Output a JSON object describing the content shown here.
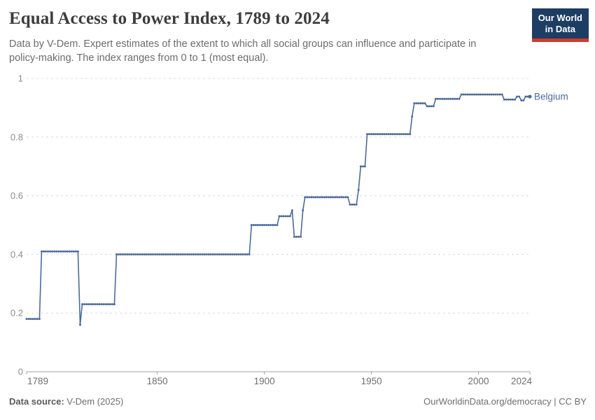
{
  "header": {
    "title": "Equal Access to Power Index, 1789 to 2024",
    "subtitle_line1": "Data by V-Dem. Expert estimates of the extent to which all social groups can influence and participate in",
    "subtitle_line2": "policy-making. The index ranges from 0 to 1 (most equal)."
  },
  "logo": {
    "line1": "Our World",
    "line2": "in Data",
    "bg_color": "#1d3d63",
    "accent_color": "#cf3a30"
  },
  "chart_data": {
    "type": "line",
    "title": "Equal Access to Power Index, 1789 to 2024",
    "entity": "Belgium",
    "xlim": [
      1789,
      2024
    ],
    "ylim": [
      0,
      1
    ],
    "x_ticks": [
      1789,
      1850,
      1900,
      1950,
      2000,
      2024
    ],
    "y_ticks": [
      0,
      0.2,
      0.4,
      0.6,
      0.8,
      1
    ],
    "grid": "horizontal-dashed",
    "legend_position": "end-of-line-label",
    "series": [
      {
        "name": "Belgium",
        "color": "#4C6A9C",
        "step_segments": [
          {
            "from": 1789,
            "to": 1795,
            "value": 0.18
          },
          {
            "from": 1796,
            "to": 1813,
            "value": 0.41
          },
          {
            "from": 1814,
            "to": 1814,
            "value": 0.16
          },
          {
            "from": 1815,
            "to": 1830,
            "value": 0.23
          },
          {
            "from": 1831,
            "to": 1893,
            "value": 0.4
          },
          {
            "from": 1894,
            "to": 1906,
            "value": 0.5
          },
          {
            "from": 1907,
            "to": 1912,
            "value": 0.53
          },
          {
            "from": 1913,
            "to": 1913,
            "value": 0.55
          },
          {
            "from": 1914,
            "to": 1917,
            "value": 0.46
          },
          {
            "from": 1918,
            "to": 1918,
            "value": 0.55
          },
          {
            "from": 1919,
            "to": 1939,
            "value": 0.595
          },
          {
            "from": 1940,
            "to": 1943,
            "value": 0.57
          },
          {
            "from": 1944,
            "to": 1944,
            "value": 0.62
          },
          {
            "from": 1945,
            "to": 1947,
            "value": 0.7
          },
          {
            "from": 1948,
            "to": 1968,
            "value": 0.81
          },
          {
            "from": 1969,
            "to": 1969,
            "value": 0.87
          },
          {
            "from": 1970,
            "to": 1975,
            "value": 0.915
          },
          {
            "from": 1976,
            "to": 1979,
            "value": 0.905
          },
          {
            "from": 1980,
            "to": 1991,
            "value": 0.93
          },
          {
            "from": 1992,
            "to": 2011,
            "value": 0.945
          },
          {
            "from": 2012,
            "to": 2017,
            "value": 0.928
          },
          {
            "from": 2018,
            "to": 2019,
            "value": 0.938
          },
          {
            "from": 2020,
            "to": 2021,
            "value": 0.925
          },
          {
            "from": 2022,
            "to": 2024,
            "value": 0.938
          }
        ]
      }
    ],
    "style": {
      "line_color": "#4C6A9C",
      "grid_color": "#dcdcdc",
      "axis_color": "#a3a3a3",
      "y_label_color": "#8c8c8c",
      "x_label_color": "#707070"
    }
  },
  "footer": {
    "datasource_label": "Data source:",
    "datasource_value": " V-Dem (2025)",
    "attribution": "OurWorldinData.org/democracy | CC BY"
  }
}
